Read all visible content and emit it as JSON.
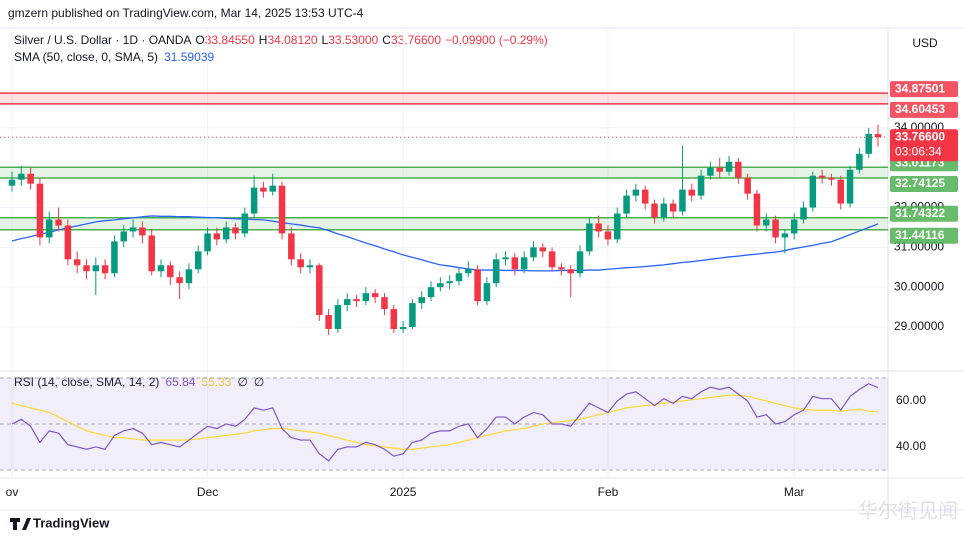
{
  "chart_data": {
    "type": "candlestick",
    "attribution": "gmzern published on TradingView.com, Mar 14, 2025 13:53 UTC-4",
    "title": "Silver / U.S. Dollar · 1D · OANDA",
    "legend_values": [
      {
        "key": "O",
        "label": "33.84550"
      },
      {
        "key": "H",
        "label": "34.08120"
      },
      {
        "key": "L",
        "label": "33.53000"
      },
      {
        "key": "C",
        "label": "33.76600"
      }
    ],
    "change_label": "−0.09900 (−0.29%)",
    "currency": "USD",
    "up_color": "#089981",
    "down_color": "#f23645",
    "ylim": [
      27.97,
      36.51
    ],
    "yticks": [
      {
        "value": 29,
        "label": "29.00000"
      },
      {
        "value": 30,
        "label": "30.00000"
      },
      {
        "value": 31,
        "label": "31.00000"
      },
      {
        "value": 32,
        "label": "32.00000"
      },
      {
        "value": 34,
        "label": "34.00000"
      }
    ],
    "xticks": [
      {
        "value": 0,
        "label": "ov"
      },
      {
        "value": 21,
        "label": "Dec"
      },
      {
        "value": 42,
        "label": "2025"
      },
      {
        "value": 64,
        "label": "Feb"
      },
      {
        "value": 84,
        "label": "Mar"
      }
    ],
    "last_price": {
      "value": 33.766,
      "label": "33.76600",
      "countdown": "03:06:34"
    },
    "zones": [
      {
        "low": 34.60453,
        "high": 34.87501,
        "color": "#f23645"
      },
      {
        "low": 32.74125,
        "high": 33.01173,
        "color": "#4caf50"
      },
      {
        "low": 31.44116,
        "high": 31.74322,
        "color": "#4caf50"
      }
    ],
    "candles": [
      [
        32.55,
        32.9,
        32.4,
        32.7
      ],
      [
        32.7,
        33.05,
        32.55,
        32.85
      ],
      [
        32.85,
        33.0,
        32.45,
        32.6
      ],
      [
        32.6,
        32.75,
        31.05,
        31.25
      ],
      [
        31.25,
        31.9,
        31.1,
        31.7
      ],
      [
        31.7,
        32.0,
        31.4,
        31.55
      ],
      [
        31.55,
        31.7,
        30.55,
        30.7
      ],
      [
        30.7,
        30.9,
        30.35,
        30.55
      ],
      [
        30.55,
        30.7,
        30.2,
        30.4
      ],
      [
        30.4,
        30.75,
        29.8,
        30.55
      ],
      [
        30.55,
        30.7,
        30.2,
        30.35
      ],
      [
        30.35,
        31.3,
        30.25,
        31.15
      ],
      [
        31.15,
        31.55,
        31.0,
        31.4
      ],
      [
        31.4,
        31.7,
        31.25,
        31.5
      ],
      [
        31.5,
        31.65,
        31.1,
        31.3
      ],
      [
        31.3,
        31.45,
        30.3,
        30.4
      ],
      [
        30.4,
        30.7,
        30.25,
        30.55
      ],
      [
        30.55,
        30.65,
        30.05,
        30.25
      ],
      [
        30.25,
        30.4,
        29.7,
        30.1
      ],
      [
        30.1,
        30.6,
        29.95,
        30.45
      ],
      [
        30.45,
        31.05,
        30.35,
        30.9
      ],
      [
        30.9,
        31.5,
        30.8,
        31.35
      ],
      [
        31.35,
        31.5,
        31.05,
        31.2
      ],
      [
        31.2,
        31.65,
        31.1,
        31.5
      ],
      [
        31.5,
        31.6,
        31.2,
        31.35
      ],
      [
        31.35,
        32.0,
        31.25,
        31.85
      ],
      [
        31.85,
        32.8,
        31.75,
        32.5
      ],
      [
        32.5,
        32.65,
        32.25,
        32.4
      ],
      [
        32.4,
        32.85,
        32.3,
        32.55
      ],
      [
        32.55,
        32.65,
        31.2,
        31.35
      ],
      [
        31.35,
        31.5,
        30.55,
        30.7
      ],
      [
        30.7,
        30.85,
        30.35,
        30.5
      ],
      [
        30.5,
        30.7,
        30.35,
        30.55
      ],
      [
        30.55,
        30.6,
        29.15,
        29.3
      ],
      [
        29.3,
        29.45,
        28.8,
        28.95
      ],
      [
        28.95,
        29.7,
        28.85,
        29.55
      ],
      [
        29.55,
        29.85,
        29.4,
        29.7
      ],
      [
        29.7,
        29.8,
        29.5,
        29.65
      ],
      [
        29.65,
        30.0,
        29.55,
        29.85
      ],
      [
        29.85,
        29.95,
        29.6,
        29.75
      ],
      [
        29.75,
        29.85,
        29.3,
        29.45
      ],
      [
        29.45,
        29.55,
        28.85,
        28.95
      ],
      [
        28.95,
        29.15,
        28.85,
        29.0
      ],
      [
        29.0,
        29.7,
        28.95,
        29.6
      ],
      [
        29.6,
        29.9,
        29.45,
        29.75
      ],
      [
        29.75,
        30.15,
        29.65,
        30.0
      ],
      [
        30.0,
        30.25,
        29.9,
        30.1
      ],
      [
        30.1,
        30.3,
        29.95,
        30.15
      ],
      [
        30.15,
        30.5,
        30.05,
        30.35
      ],
      [
        30.35,
        30.65,
        30.25,
        30.45
      ],
      [
        30.45,
        30.55,
        29.55,
        29.65
      ],
      [
        29.65,
        30.25,
        29.55,
        30.1
      ],
      [
        30.1,
        30.85,
        30.0,
        30.7
      ],
      [
        30.7,
        30.9,
        30.55,
        30.75
      ],
      [
        30.75,
        30.85,
        30.3,
        30.45
      ],
      [
        30.45,
        30.9,
        30.35,
        30.75
      ],
      [
        30.75,
        31.15,
        30.65,
        31.0
      ],
      [
        31.0,
        31.1,
        30.75,
        30.9
      ],
      [
        30.9,
        31.0,
        30.4,
        30.5
      ],
      [
        30.5,
        30.6,
        30.3,
        30.45
      ],
      [
        30.45,
        30.55,
        29.75,
        30.35
      ],
      [
        30.35,
        31.05,
        30.25,
        30.9
      ],
      [
        30.9,
        31.75,
        30.8,
        31.6
      ],
      [
        31.6,
        31.8,
        31.25,
        31.4
      ],
      [
        31.4,
        31.55,
        31.05,
        31.2
      ],
      [
        31.2,
        32.0,
        31.1,
        31.85
      ],
      [
        31.85,
        32.45,
        31.75,
        32.3
      ],
      [
        32.3,
        32.6,
        32.15,
        32.45
      ],
      [
        32.45,
        32.55,
        31.95,
        32.1
      ],
      [
        32.1,
        32.2,
        31.6,
        31.75
      ],
      [
        31.75,
        32.25,
        31.65,
        32.1
      ],
      [
        32.1,
        32.2,
        31.75,
        31.9
      ],
      [
        31.9,
        33.55,
        31.8,
        32.45
      ],
      [
        32.45,
        32.6,
        32.15,
        32.3
      ],
      [
        32.3,
        32.95,
        32.2,
        32.8
      ],
      [
        32.8,
        33.15,
        32.7,
        33.0
      ],
      [
        33.0,
        33.25,
        32.75,
        32.9
      ],
      [
        32.9,
        33.3,
        32.8,
        33.15
      ],
      [
        33.15,
        33.25,
        32.6,
        32.75
      ],
      [
        32.75,
        32.85,
        32.2,
        32.35
      ],
      [
        32.35,
        32.45,
        31.4,
        31.55
      ],
      [
        31.55,
        31.85,
        31.4,
        31.7
      ],
      [
        31.7,
        31.8,
        31.1,
        31.25
      ],
      [
        31.25,
        31.45,
        30.85,
        31.35
      ],
      [
        31.35,
        31.85,
        31.2,
        31.7
      ],
      [
        31.7,
        32.15,
        31.6,
        32.0
      ],
      [
        32.0,
        32.9,
        31.9,
        32.8
      ],
      [
        32.8,
        32.95,
        32.6,
        32.75
      ],
      [
        32.75,
        32.85,
        32.55,
        32.7
      ],
      [
        32.7,
        32.8,
        31.95,
        32.1
      ],
      [
        32.1,
        33.05,
        32.0,
        32.95
      ],
      [
        32.95,
        33.5,
        32.85,
        33.35
      ],
      [
        33.35,
        34.0,
        33.25,
        33.85
      ],
      [
        33.8455,
        34.0812,
        33.53,
        33.766
      ]
    ],
    "series": [
      {
        "name": "SMA (50, close, 0, SMA, 5)",
        "color": "#2962ff",
        "value_label": "31.59039",
        "values": [
          31.16,
          31.22,
          31.27,
          31.33,
          31.38,
          31.44,
          31.49,
          31.54,
          31.59,
          31.64,
          31.67,
          31.69,
          31.72,
          31.74,
          31.77,
          31.79,
          31.78,
          31.78,
          31.77,
          31.77,
          31.76,
          31.75,
          31.74,
          31.73,
          31.72,
          31.71,
          31.7,
          31.69,
          31.66,
          31.62,
          31.59,
          31.56,
          31.52,
          31.49,
          31.42,
          31.34,
          31.27,
          31.19,
          31.11,
          31.04,
          30.96,
          30.89,
          30.81,
          30.75,
          30.69,
          30.62,
          30.56,
          30.53,
          30.49,
          30.46,
          30.43,
          30.43,
          30.43,
          30.42,
          30.42,
          30.42,
          30.41,
          30.41,
          30.41,
          30.42,
          30.42,
          30.42,
          30.43,
          30.43,
          30.45,
          30.47,
          30.49,
          30.5,
          30.52,
          30.54,
          30.56,
          30.59,
          30.62,
          30.64,
          30.67,
          30.7,
          30.73,
          30.76,
          30.78,
          30.81,
          30.83,
          30.86,
          30.88,
          30.92,
          30.97,
          31.01,
          31.05,
          31.1,
          31.14,
          31.23,
          31.32,
          31.41,
          31.5,
          31.59039
        ]
      }
    ],
    "rsi": {
      "name": "RSI (14, close, SMA, 14, 2)",
      "color": "#7e57c2",
      "sma_color": "#fdd835",
      "value_label": "65.84",
      "sma_label": "55.33",
      "na_labels": [
        "∅",
        "∅"
      ],
      "ylim": [
        27.8,
        71.3
      ],
      "bands": [
        70,
        50,
        30
      ],
      "yticks": [
        {
          "value": 40,
          "label": "40.00"
        },
        {
          "value": 60,
          "label": "60.00"
        }
      ],
      "values": [
        50,
        52,
        49,
        42,
        47,
        46,
        41,
        40,
        39,
        40,
        39,
        45,
        47,
        48,
        46,
        41,
        42,
        41,
        40,
        43,
        46,
        49,
        48,
        50,
        49,
        52,
        57,
        56,
        57,
        48,
        44,
        43,
        43,
        37,
        34,
        39,
        40,
        40,
        42,
        41,
        39,
        36,
        37,
        42,
        43,
        46,
        47,
        47,
        49,
        50,
        44,
        48,
        53,
        53,
        50,
        53,
        55,
        54,
        50,
        50,
        49,
        54,
        59,
        57,
        55,
        60,
        63,
        64,
        61,
        58,
        61,
        59,
        62,
        61,
        64,
        66,
        65,
        66,
        63,
        60,
        53,
        54,
        50,
        51,
        54,
        56,
        62,
        61,
        61,
        56,
        62,
        65,
        67.5,
        65.84
      ],
      "sma": [
        59,
        58,
        57,
        56,
        55,
        53,
        51,
        49,
        47,
        46,
        45,
        44,
        44,
        43.5,
        43,
        43,
        43,
        43,
        43,
        43,
        43.5,
        44,
        44.5,
        45,
        45.5,
        46,
        47,
        47.5,
        48,
        48,
        47.5,
        47,
        46.5,
        46,
        45,
        44,
        43,
        42,
        41,
        40.5,
        40,
        39.5,
        39,
        39,
        39.5,
        40,
        40.5,
        41,
        42,
        43,
        44,
        45,
        46,
        47,
        47.5,
        48,
        49,
        50,
        50.5,
        51,
        51.5,
        52,
        53,
        54,
        55,
        56,
        57,
        57.5,
        58,
        58.5,
        59,
        59.5,
        60,
        60.5,
        61,
        61.5,
        62,
        62.5,
        62.5,
        62,
        61,
        60,
        59,
        58,
        57,
        56.5,
        56,
        56,
        56,
        55.5,
        56,
        56.5,
        55.5,
        55.33
      ]
    },
    "brand": "TradingView",
    "watermark": "华尔街见闻"
  }
}
